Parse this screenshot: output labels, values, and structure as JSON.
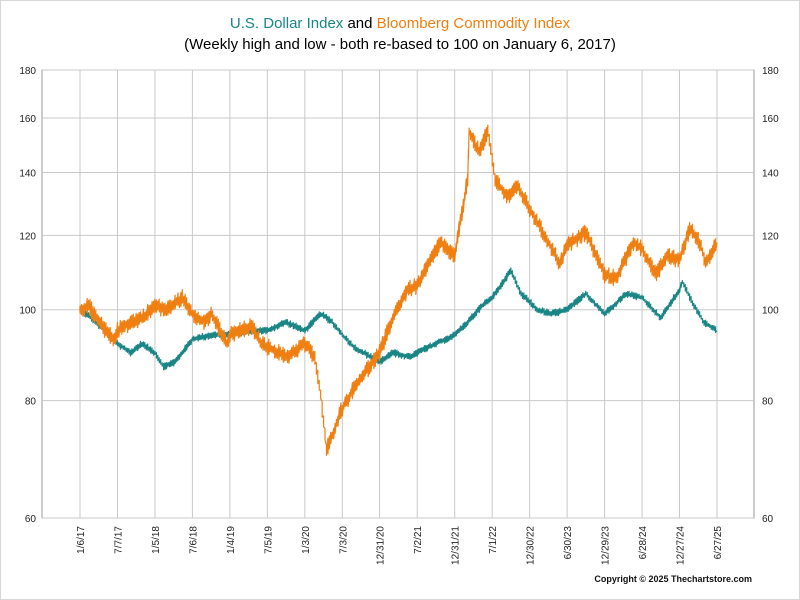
{
  "title": {
    "series1_name": "U.S. Dollar Index",
    "joiner": " and ",
    "series2_name": "Bloomberg Commodity Index",
    "subtitle": "(Weekly high and low - both re-based to 100 on January 6, 2017)"
  },
  "copyright": "Copyright © 2025 Thechartstore.com",
  "colors": {
    "usd": "#1a8585",
    "bcom": "#f07f12",
    "grid": "#c9c9c9"
  },
  "chart_data": {
    "type": "line",
    "title": "U.S. Dollar Index and Bloomberg Commodity Index",
    "subtitle": "(Weekly high and low - both re-based to 100 on January 6, 2017)",
    "y_scale": "log",
    "ylim": [
      60,
      180
    ],
    "y_ticks": [
      60,
      80,
      100,
      120,
      140,
      160,
      180
    ],
    "x_ticks": [
      "1/6/17",
      "7/7/17",
      "1/5/18",
      "7/6/18",
      "1/4/19",
      "7/5/19",
      "1/3/20",
      "7/3/20",
      "12/31/20",
      "7/2/21",
      "12/31/21",
      "7/1/22",
      "12/30/22",
      "6/30/23",
      "12/29/23",
      "6/28/24",
      "12/27/24",
      "6/27/25"
    ],
    "x_tick_dates": [
      "2017-01-06",
      "2017-07-07",
      "2018-01-05",
      "2018-07-06",
      "2019-01-04",
      "2019-07-05",
      "2020-01-03",
      "2020-07-03",
      "2020-12-31",
      "2021-07-02",
      "2021-12-31",
      "2022-07-01",
      "2022-12-30",
      "2023-06-30",
      "2023-12-29",
      "2024-06-28",
      "2024-12-27",
      "2025-06-27"
    ],
    "grid": true,
    "legend": "title",
    "series": [
      {
        "name": "U.S. Dollar Index",
        "color": "#1a8585",
        "points": [
          [
            "2017-01-06",
            100
          ],
          [
            "2017-03-03",
            98
          ],
          [
            "2017-05-05",
            95
          ],
          [
            "2017-07-07",
            92
          ],
          [
            "2017-09-08",
            90
          ],
          [
            "2017-11-03",
            92
          ],
          [
            "2018-01-05",
            90
          ],
          [
            "2018-02-16",
            87
          ],
          [
            "2018-04-13",
            88
          ],
          [
            "2018-07-06",
            93
          ],
          [
            "2018-10-05",
            94
          ],
          [
            "2019-01-04",
            94
          ],
          [
            "2019-04-05",
            95
          ],
          [
            "2019-07-05",
            95
          ],
          [
            "2019-10-04",
            97
          ],
          [
            "2020-01-03",
            95
          ],
          [
            "2020-03-20",
            99
          ],
          [
            "2020-05-15",
            97
          ],
          [
            "2020-07-03",
            94
          ],
          [
            "2020-09-04",
            91
          ],
          [
            "2020-12-31",
            88
          ],
          [
            "2021-03-05",
            90
          ],
          [
            "2021-05-28",
            89
          ],
          [
            "2021-07-02",
            90
          ],
          [
            "2021-10-01",
            92
          ],
          [
            "2021-12-31",
            94
          ],
          [
            "2022-03-04",
            97
          ],
          [
            "2022-05-13",
            101
          ],
          [
            "2022-07-01",
            103
          ],
          [
            "2022-09-30",
            110
          ],
          [
            "2022-11-18",
            104
          ],
          [
            "2022-12-30",
            102
          ],
          [
            "2023-02-03",
            100
          ],
          [
            "2023-04-14",
            99
          ],
          [
            "2023-06-30",
            100
          ],
          [
            "2023-09-29",
            104
          ],
          [
            "2023-12-29",
            99
          ],
          [
            "2024-04-12",
            104
          ],
          [
            "2024-06-28",
            103
          ],
          [
            "2024-09-27",
            98
          ],
          [
            "2024-12-27",
            105
          ],
          [
            "2025-01-10",
            107
          ],
          [
            "2025-03-07",
            101
          ],
          [
            "2025-04-25",
            97
          ],
          [
            "2025-06-27",
            95
          ]
        ]
      },
      {
        "name": "Bloomberg Commodity Index",
        "color": "#f07f12",
        "points": [
          [
            "2017-01-06",
            100
          ],
          [
            "2017-02-17",
            101
          ],
          [
            "2017-04-07",
            97
          ],
          [
            "2017-06-16",
            93
          ],
          [
            "2017-07-07",
            95
          ],
          [
            "2017-09-08",
            97
          ],
          [
            "2017-11-03",
            98
          ],
          [
            "2018-01-05",
            101
          ],
          [
            "2018-03-02",
            100
          ],
          [
            "2018-05-18",
            103
          ],
          [
            "2018-07-06",
            99
          ],
          [
            "2018-09-07",
            97
          ],
          [
            "2018-10-05",
            99
          ],
          [
            "2018-12-21",
            92
          ],
          [
            "2019-01-04",
            94
          ],
          [
            "2019-04-19",
            96
          ],
          [
            "2019-06-07",
            92
          ],
          [
            "2019-08-30",
            90
          ],
          [
            "2019-10-04",
            89
          ],
          [
            "2020-01-03",
            92
          ],
          [
            "2020-02-21",
            89
          ],
          [
            "2020-03-20",
            81
          ],
          [
            "2020-04-17",
            71
          ],
          [
            "2020-05-01",
            72
          ],
          [
            "2020-06-26",
            78
          ],
          [
            "2020-09-04",
            83
          ],
          [
            "2020-12-31",
            90
          ],
          [
            "2021-03-05",
            98
          ],
          [
            "2021-05-14",
            105
          ],
          [
            "2021-07-02",
            106
          ],
          [
            "2021-10-22",
            118
          ],
          [
            "2021-12-31",
            114
          ],
          [
            "2022-03-04",
            138
          ],
          [
            "2022-03-11",
            155
          ],
          [
            "2022-04-29",
            147
          ],
          [
            "2022-06-10",
            155
          ],
          [
            "2022-07-15",
            138
          ],
          [
            "2022-09-09",
            132
          ],
          [
            "2022-11-04",
            135
          ],
          [
            "2022-12-30",
            128
          ],
          [
            "2023-03-03",
            121
          ],
          [
            "2023-05-26",
            112
          ],
          [
            "2023-06-30",
            117
          ],
          [
            "2023-09-29",
            121
          ],
          [
            "2023-12-29",
            109
          ],
          [
            "2024-02-23",
            108
          ],
          [
            "2024-05-17",
            118
          ],
          [
            "2024-06-28",
            116
          ],
          [
            "2024-09-06",
            109
          ],
          [
            "2024-10-25",
            114
          ],
          [
            "2024-12-27",
            113
          ],
          [
            "2025-02-14",
            122
          ],
          [
            "2025-04-04",
            118
          ],
          [
            "2025-05-02",
            112
          ],
          [
            "2025-06-27",
            118
          ]
        ]
      }
    ]
  }
}
